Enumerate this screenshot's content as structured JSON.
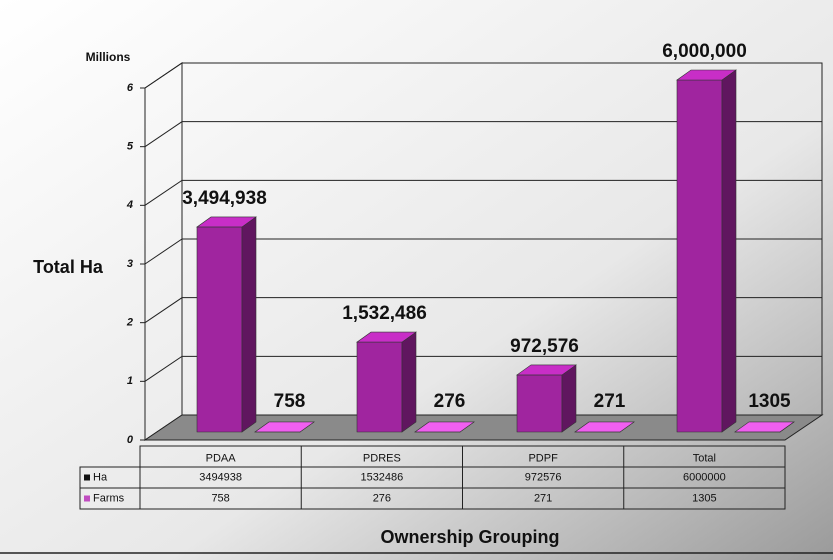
{
  "chart_data": {
    "type": "bar3d",
    "y_unit_label": "Millions",
    "y_axis_label": "Total Ha",
    "x_axis_label": "Ownership Grouping",
    "categories": [
      "PDAA",
      "PDRES",
      "PDPF",
      "Total"
    ],
    "series": [
      {
        "name": "Ha",
        "color": "#a0259f",
        "values": [
          3494938,
          1532486,
          972576,
          6000000
        ],
        "value_labels": [
          "3,494,938",
          "1,532,486",
          "972,576",
          "6,000,000"
        ]
      },
      {
        "name": "Farms",
        "color": "#c04cc0",
        "values": [
          758,
          276,
          271,
          1305
        ]
      }
    ],
    "ylim": [
      0,
      6000000
    ],
    "yticks": [
      {
        "value": 0,
        "label": "0"
      },
      {
        "value": 1000000,
        "label": "1"
      },
      {
        "value": 2000000,
        "label": "2"
      },
      {
        "value": 3000000,
        "label": "3"
      },
      {
        "value": 4000000,
        "label": "4"
      },
      {
        "value": 5000000,
        "label": "5"
      },
      {
        "value": 6000000,
        "label": "6"
      }
    ],
    "grid": true
  }
}
